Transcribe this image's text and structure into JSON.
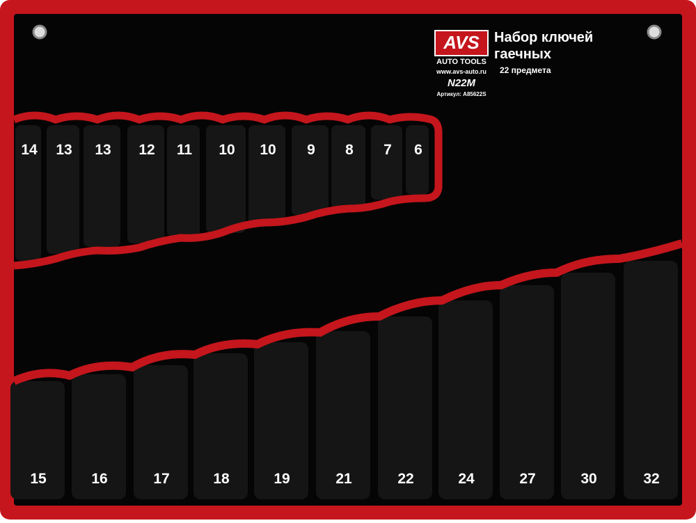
{
  "brand": {
    "logo": "AVS",
    "sub": "AUTO TOOLS",
    "site": "www.avs-auto.ru",
    "model": "N22M",
    "article": "Артикул: A85622S"
  },
  "header": {
    "title_line1": "Набор ключей",
    "title_line2": "гаечных",
    "subtitle": "22 предмета"
  },
  "top_row": [
    "14",
    "13",
    "13",
    "12",
    "11",
    "10",
    "10",
    "9",
    "8",
    "7",
    "6"
  ],
  "bottom_row": [
    "15",
    "16",
    "17",
    "18",
    "19",
    "21",
    "22",
    "24",
    "27",
    "30",
    "32"
  ]
}
